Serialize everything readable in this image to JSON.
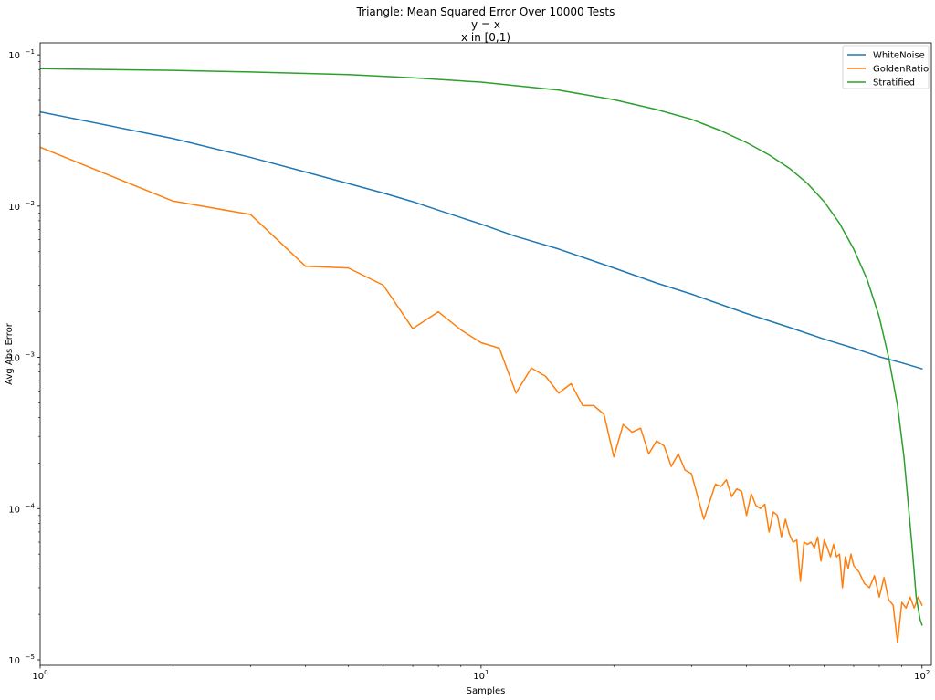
{
  "chart_data": {
    "type": "line",
    "title": [
      "Triangle: Mean Squared Error Over 10000 Tests",
      "y = x",
      "x in [0,1)"
    ],
    "xlabel": "Samples",
    "ylabel": "Avg Abs Error",
    "xscale": "log",
    "yscale": "log",
    "xlim": [
      1,
      105
    ],
    "ylim": [
      9.2e-06,
      0.12
    ],
    "x_ticks": [
      {
        "value": 1,
        "base": "10",
        "exp": "0"
      },
      {
        "value": 10,
        "base": "10",
        "exp": "1"
      },
      {
        "value": 100,
        "base": "10",
        "exp": "2"
      }
    ],
    "y_ticks": [
      {
        "value": 1e-05,
        "base": "10",
        "exp": "−5"
      },
      {
        "value": 0.0001,
        "base": "10",
        "exp": "−4"
      },
      {
        "value": 0.001,
        "base": "10",
        "exp": "−3"
      },
      {
        "value": 0.01,
        "base": "10",
        "exp": "−2"
      },
      {
        "value": 0.1,
        "base": "10",
        "exp": "−1"
      }
    ],
    "grid": false,
    "legend_position": "top-right",
    "series": [
      {
        "name": "WhiteNoise",
        "color": "#1f77b4",
        "x": [
          1,
          2,
          3,
          4,
          5,
          6,
          7,
          8,
          10,
          12,
          15,
          20,
          25,
          30,
          40,
          50,
          60,
          70,
          80,
          90,
          100
        ],
        "values": [
          0.042,
          0.028,
          0.021,
          0.0168,
          0.0141,
          0.0122,
          0.0107,
          0.0094,
          0.0076,
          0.0063,
          0.0052,
          0.0039,
          0.0031,
          0.00262,
          0.00195,
          0.00158,
          0.00132,
          0.00115,
          0.00101,
          0.00092,
          0.00084
        ]
      },
      {
        "name": "GoldenRatio",
        "color": "#ff7f0e",
        "x": [
          1,
          2,
          3,
          4,
          5,
          6,
          7,
          8,
          9,
          10,
          11,
          12,
          13,
          14,
          15,
          16,
          17,
          18,
          19,
          20,
          21,
          22,
          23,
          24,
          25,
          26,
          27,
          28,
          29,
          30,
          32,
          34,
          35,
          36,
          37,
          38,
          39,
          40,
          41,
          42,
          43,
          44,
          45,
          46,
          47,
          48,
          49,
          50,
          51,
          52,
          53,
          54,
          55,
          56,
          57,
          58,
          59,
          60,
          61,
          62,
          63,
          64,
          65,
          66,
          67,
          68,
          69,
          70,
          72,
          74,
          76,
          78,
          80,
          82,
          84,
          86,
          88,
          90,
          92,
          94,
          96,
          98,
          100
        ],
        "values": [
          0.0245,
          0.0108,
          0.0088,
          0.004,
          0.0039,
          0.003,
          0.00155,
          0.002,
          0.00152,
          0.00125,
          0.00115,
          0.00058,
          0.00085,
          0.00075,
          0.00058,
          0.00067,
          0.00048,
          0.00048,
          0.00042,
          0.00022,
          0.00036,
          0.00032,
          0.00034,
          0.00023,
          0.00028,
          0.00026,
          0.00019,
          0.00023,
          0.00018,
          0.00017,
          8.5e-05,
          0.000145,
          0.00014,
          0.000155,
          0.00012,
          0.000135,
          0.00013,
          9e-05,
          0.000125,
          0.000105,
          0.0001,
          0.000107,
          7e-05,
          9.5e-05,
          9e-05,
          6.5e-05,
          8.5e-05,
          6.8e-05,
          6e-05,
          6.2e-05,
          3.3e-05,
          6e-05,
          5.8e-05,
          6e-05,
          5.5e-05,
          6.5e-05,
          4.5e-05,
          6.2e-05,
          5.5e-05,
          4.8e-05,
          5.8e-05,
          4.8e-05,
          5e-05,
          3e-05,
          4.8e-05,
          4e-05,
          5e-05,
          4.2e-05,
          3.8e-05,
          3.2e-05,
          3e-05,
          3.6e-05,
          2.6e-05,
          3.5e-05,
          2.5e-05,
          2.3e-05,
          1.3e-05,
          2.4e-05,
          2.2e-05,
          2.6e-05,
          2.2e-05,
          2.6e-05,
          2.3e-05
        ]
      },
      {
        "name": "Stratified",
        "color": "#2ca02c",
        "x": [
          1,
          2,
          3,
          5,
          7,
          10,
          15,
          20,
          25,
          30,
          35,
          40,
          45,
          50,
          55,
          60,
          65,
          70,
          75,
          80,
          84,
          88,
          91,
          93,
          95,
          96,
          97,
          98,
          99,
          100
        ],
        "values": [
          0.081,
          0.079,
          0.077,
          0.074,
          0.0705,
          0.066,
          0.0585,
          0.0505,
          0.0435,
          0.0375,
          0.0315,
          0.0263,
          0.0218,
          0.0178,
          0.0141,
          0.0107,
          0.0077,
          0.0052,
          0.0033,
          0.00185,
          0.001,
          0.00048,
          0.00022,
          0.00011,
          5.5e-05,
          3.8e-05,
          2.6e-05,
          2.2e-05,
          1.85e-05,
          1.7e-05
        ]
      }
    ]
  }
}
